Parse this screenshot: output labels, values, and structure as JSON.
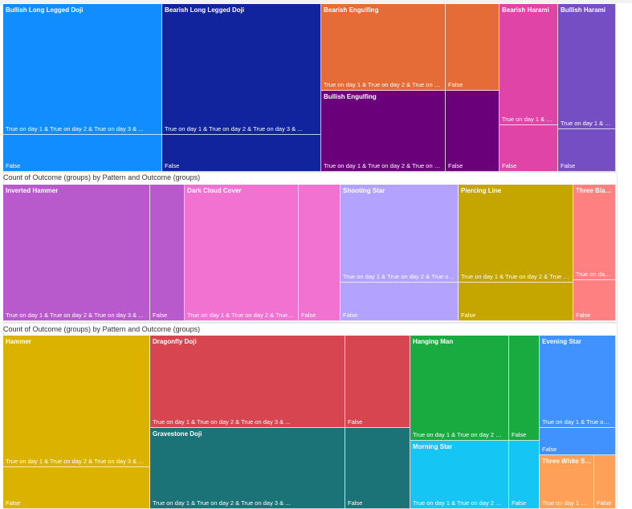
{
  "titles": [
    "",
    "Count of Outcome (groups) by Pattern and Outcome (groups)",
    "Count of Outcome (groups) by Pattern and Outcome (groups)"
  ],
  "labels": {
    "true_group": "True on day 1 & True on day 2 & True on day 3 & ...",
    "false_group": "False"
  },
  "chart_data": [
    {
      "type": "treemap",
      "title": "",
      "groups": [
        "True on day 1 & True on day 2 & True on day 3 & ...",
        "False"
      ],
      "patterns": [
        {
          "name": "Bullish Long Legged Doji",
          "true": 85,
          "false": 24,
          "color": "#118DFF"
        },
        {
          "name": "Bearish Long Legged Doji",
          "true": 85,
          "false": 24,
          "color": "#12239E"
        },
        {
          "name": "Bearish Engulfing",
          "true": 58,
          "false": 25,
          "color": "#E66C37"
        },
        {
          "name": "Bullish Engulfing",
          "true": 46,
          "false": 20,
          "color": "#6B007B"
        },
        {
          "name": "Bearish Harami",
          "true": 65,
          "false": 25,
          "color": "#E044A7"
        },
        {
          "name": "Bullish Harami",
          "true": 65,
          "false": 22,
          "color": "#744EC2"
        }
      ]
    },
    {
      "type": "treemap",
      "title": "Count of Outcome (groups) by Pattern and Outcome (groups)",
      "groups": [
        "True on day 1 & True on day 2 & True on day 3 & ...",
        "False"
      ],
      "patterns": [
        {
          "name": "Inverted Hammer",
          "true": 80,
          "false": 19,
          "color": "#B85ACB"
        },
        {
          "name": "Dark Cloud Cover",
          "true": 62,
          "false": 23,
          "color": "#F272D2"
        },
        {
          "name": "Shooting Star",
          "true": 63,
          "false": 25,
          "color": "#B4A2FF"
        },
        {
          "name": "Piercing Line",
          "true": 58,
          "false": 23,
          "color": "#C5A600"
        },
        {
          "name": "Three Black Crows",
          "true": 59,
          "false": 25,
          "color": "#FF8080"
        }
      ]
    },
    {
      "type": "treemap",
      "title": "Count of Outcome (groups) by Pattern and Outcome (groups)",
      "groups": [
        "True on day 1 & True on day 2 & True on day 3 & ...",
        "False"
      ],
      "patterns": [
        {
          "name": "Hammer",
          "true": 85,
          "false": 27,
          "color": "#DBB200"
        },
        {
          "name": "Dragonfly Doji",
          "true": 75,
          "false": 25,
          "color": "#D64550"
        },
        {
          "name": "Gravestone Doji",
          "true": 75,
          "false": 25,
          "color": "#1B7277"
        },
        {
          "name": "Hanging Man",
          "true": 71,
          "false": 22,
          "color": "#1AAB40"
        },
        {
          "name": "Morning Star",
          "true": 71,
          "false": 22,
          "color": "#15C6F4"
        },
        {
          "name": "Evening Star",
          "true": 79,
          "false": 23,
          "color": "#4092FF"
        },
        {
          "name": "Three White Soldiers",
          "true": 71,
          "false": 28,
          "color": "#FFA058"
        }
      ]
    }
  ]
}
